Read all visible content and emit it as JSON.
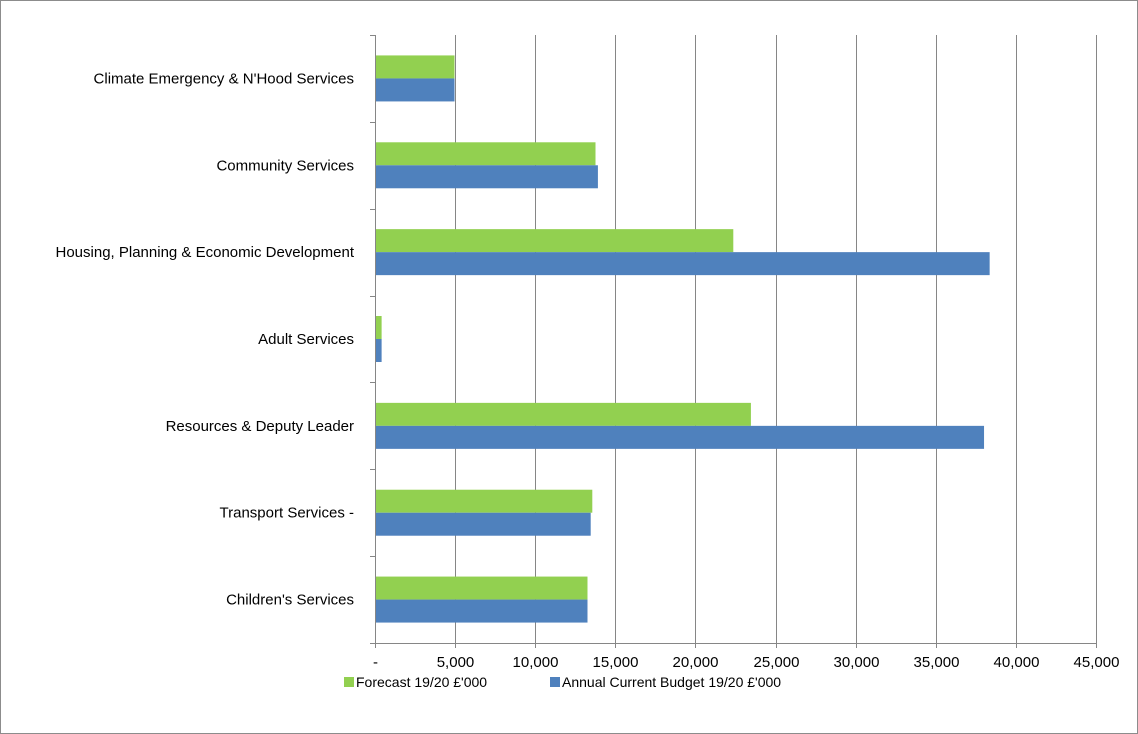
{
  "chart_data": {
    "type": "bar",
    "orientation": "horizontal",
    "categories": [
      "Climate Emergency & N'Hood Services",
      "Community Services",
      "Housing, Planning & Economic Development",
      "Adult Services",
      "Resources & Deputy Leader",
      "Transport Services -",
      "Children's Services"
    ],
    "series": [
      {
        "name": "Forecast 19/20 £'000",
        "color": "#92d050",
        "values": [
          4900,
          13700,
          22300,
          350,
          23400,
          13500,
          13200
        ]
      },
      {
        "name": "Annual Current Budget 19/20 £'000",
        "color": "#4f81bd",
        "values": [
          4900,
          13850,
          38300,
          350,
          37950,
          13400,
          13200
        ]
      }
    ],
    "xlim": [
      0,
      45000
    ],
    "x_ticks": [
      0,
      5000,
      10000,
      15000,
      20000,
      25000,
      30000,
      35000,
      40000,
      45000
    ],
    "x_tick_labels": [
      "-",
      "5,000",
      "10,000",
      "15,000",
      "20,000",
      "25,000",
      "30,000",
      "35,000",
      "40,000",
      "45,000"
    ],
    "gridlines": "vertical",
    "legend_position": "bottom-left",
    "title": "",
    "xlabel": "",
    "ylabel": ""
  }
}
